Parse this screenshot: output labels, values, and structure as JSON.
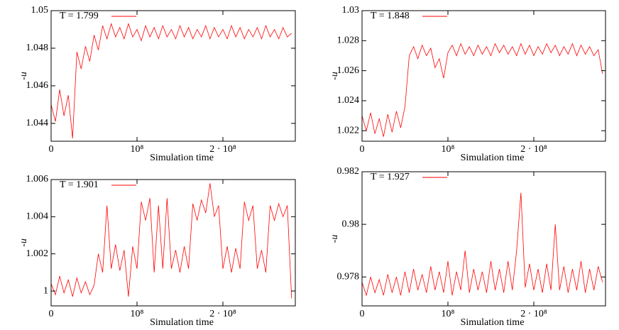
{
  "chart_data": [
    {
      "type": "line",
      "xlabel": "Simulation time",
      "ylabel": "-u",
      "legend": "upper left",
      "x": [
        0,
        5000000,
        10000000,
        15000000,
        20000000,
        25000000,
        30000000,
        35000000,
        40000000,
        45000000,
        50000000,
        55000000,
        60000000,
        65000000,
        70000000,
        75000000,
        80000000,
        85000000,
        90000000,
        95000000,
        100000000,
        105000000,
        110000000,
        115000000,
        120000000,
        125000000,
        130000000,
        135000000,
        140000000,
        145000000,
        150000000,
        155000000,
        160000000,
        165000000,
        170000000,
        175000000,
        180000000,
        185000000,
        190000000,
        195000000,
        200000000,
        205000000,
        210000000,
        215000000,
        220000000,
        225000000,
        230000000,
        235000000,
        240000000,
        245000000,
        250000000,
        255000000,
        260000000,
        265000000,
        270000000,
        275000000,
        280000000
      ],
      "series": [
        {
          "name": "T = 1.799",
          "color": "#ff0000",
          "values": [
            1.045,
            1.0441,
            1.0458,
            1.0444,
            1.0455,
            1.0432,
            1.0478,
            1.0469,
            1.0481,
            1.0473,
            1.0487,
            1.0479,
            1.0492,
            1.0485,
            1.0493,
            1.0486,
            1.0491,
            1.0485,
            1.0493,
            1.0486,
            1.049,
            1.0484,
            1.0492,
            1.0486,
            1.0491,
            1.0485,
            1.0492,
            1.0486,
            1.049,
            1.0485,
            1.0492,
            1.0486,
            1.0491,
            1.0485,
            1.049,
            1.0486,
            1.0492,
            1.0485,
            1.0491,
            1.0486,
            1.049,
            1.0485,
            1.0492,
            1.0486,
            1.0491,
            1.0485,
            1.049,
            1.0486,
            1.0491,
            1.0485,
            1.0492,
            1.0486,
            1.049,
            1.0485,
            1.0491,
            1.0486,
            1.0488
          ]
        }
      ],
      "xlim": [
        0,
        284300000
      ],
      "ylim": [
        1.04305,
        1.05
      ],
      "xticks": [
        0,
        {
          "value": 100000000,
          "label": "10⁸"
        },
        {
          "value": 200000000,
          "label": "2 · 10⁸"
        }
      ],
      "yticks": [
        1.044,
        1.046,
        1.048,
        1.05
      ]
    },
    {
      "type": "line",
      "xlabel": "Simulation time",
      "ylabel": "-u",
      "legend": "upper left",
      "x": [
        0,
        5000000,
        10000000,
        15000000,
        20000000,
        25000000,
        30000000,
        35000000,
        40000000,
        45000000,
        50000000,
        55000000,
        60000000,
        65000000,
        70000000,
        75000000,
        80000000,
        85000000,
        90000000,
        95000000,
        100000000,
        105000000,
        110000000,
        115000000,
        120000000,
        125000000,
        130000000,
        135000000,
        140000000,
        145000000,
        150000000,
        155000000,
        160000000,
        165000000,
        170000000,
        175000000,
        180000000,
        185000000,
        190000000,
        195000000,
        200000000,
        205000000,
        210000000,
        215000000,
        220000000,
        225000000,
        230000000,
        235000000,
        240000000,
        245000000,
        250000000,
        255000000,
        260000000,
        265000000,
        270000000,
        275000000,
        280000000
      ],
      "series": [
        {
          "name": "T = 1.848",
          "color": "#ff0000",
          "values": [
            1.023,
            1.022,
            1.0232,
            1.0218,
            1.0228,
            1.0216,
            1.0231,
            1.0219,
            1.0233,
            1.0222,
            1.0236,
            1.027,
            1.0276,
            1.0268,
            1.0277,
            1.027,
            1.0275,
            1.0262,
            1.0268,
            1.0255,
            1.0272,
            1.0277,
            1.027,
            1.0278,
            1.0271,
            1.0276,
            1.027,
            1.0277,
            1.0271,
            1.0276,
            1.027,
            1.0278,
            1.0272,
            1.0277,
            1.0271,
            1.0276,
            1.027,
            1.0278,
            1.0271,
            1.0277,
            1.027,
            1.0276,
            1.0271,
            1.0278,
            1.0272,
            1.0277,
            1.027,
            1.0276,
            1.0271,
            1.0278,
            1.027,
            1.0277,
            1.0271,
            1.0276,
            1.027,
            1.0274,
            1.0258
          ]
        }
      ],
      "xlim": [
        0,
        283500000
      ],
      "ylim": [
        1.0213,
        1.03
      ],
      "xticks": [
        0,
        {
          "value": 100000000,
          "label": "10⁸"
        },
        {
          "value": 200000000,
          "label": "2 · 10⁸"
        }
      ],
      "yticks": [
        1.022,
        1.024,
        1.026,
        1.028,
        1.03
      ]
    },
    {
      "type": "line",
      "xlabel": "Simulation time",
      "ylabel": "-u",
      "legend": "upper left",
      "x": [
        0,
        5000000,
        10000000,
        15000000,
        20000000,
        25000000,
        30000000,
        35000000,
        40000000,
        45000000,
        50000000,
        55000000,
        60000000,
        65000000,
        70000000,
        75000000,
        80000000,
        85000000,
        90000000,
        95000000,
        100000000,
        105000000,
        110000000,
        115000000,
        120000000,
        125000000,
        130000000,
        135000000,
        140000000,
        145000000,
        150000000,
        155000000,
        160000000,
        165000000,
        170000000,
        175000000,
        180000000,
        185000000,
        190000000,
        195000000,
        200000000,
        205000000,
        210000000,
        215000000,
        220000000,
        225000000,
        230000000,
        235000000,
        240000000,
        245000000,
        250000000,
        255000000,
        260000000,
        265000000,
        270000000,
        275000000,
        280000000
      ],
      "series": [
        {
          "name": "T = 1.901",
          "color": "#ff0000",
          "values": [
            1.0004,
            0.9998,
            1.0008,
            0.9999,
            1.0006,
            0.9997,
            1.0007,
            0.9999,
            1.0005,
            0.9998,
            1.0003,
            1.002,
            1.001,
            1.0046,
            1.0012,
            1.0025,
            1.0011,
            1.0022,
            0.9997,
            1.0024,
            1.0012,
            1.0048,
            1.0038,
            1.005,
            1.001,
            1.0046,
            1.0012,
            1.005,
            1.0012,
            1.0022,
            1.001,
            1.0024,
            1.0012,
            1.0047,
            1.0038,
            1.0049,
            1.0042,
            1.0058,
            1.004,
            1.0046,
            1.0012,
            1.0024,
            1.001,
            1.0023,
            1.0012,
            1.0048,
            1.0038,
            1.0046,
            1.0012,
            1.0022,
            1.001,
            1.0046,
            1.0038,
            1.0047,
            1.004,
            1.0046,
            0.9996
          ]
        }
      ],
      "xlim": [
        0,
        284300000
      ],
      "ylim": [
        0.9992,
        1.006
      ],
      "xticks": [
        0,
        {
          "value": 100000000,
          "label": "10⁸"
        },
        {
          "value": 200000000,
          "label": "2 · 10⁸"
        }
      ],
      "yticks": [
        1,
        1.002,
        1.004,
        1.006
      ]
    },
    {
      "type": "line",
      "xlabel": "Simulation time",
      "ylabel": "-u",
      "legend": "upper left",
      "x": [
        0,
        5000000,
        10000000,
        15000000,
        20000000,
        25000000,
        30000000,
        35000000,
        40000000,
        45000000,
        50000000,
        55000000,
        60000000,
        65000000,
        70000000,
        75000000,
        80000000,
        85000000,
        90000000,
        95000000,
        100000000,
        105000000,
        110000000,
        115000000,
        120000000,
        125000000,
        130000000,
        135000000,
        140000000,
        145000000,
        150000000,
        155000000,
        160000000,
        165000000,
        170000000,
        175000000,
        180000000,
        185000000,
        190000000,
        195000000,
        200000000,
        205000000,
        210000000,
        215000000,
        220000000,
        225000000,
        230000000,
        235000000,
        240000000,
        245000000,
        250000000,
        255000000,
        260000000,
        265000000,
        270000000,
        275000000,
        280000000
      ],
      "series": [
        {
          "name": "T = 1.927",
          "color": "#ff0000",
          "values": [
            0.9778,
            0.9773,
            0.978,
            0.9774,
            0.9779,
            0.9773,
            0.9781,
            0.9774,
            0.978,
            0.9773,
            0.9782,
            0.9774,
            0.9783,
            0.9775,
            0.9781,
            0.9774,
            0.9784,
            0.9775,
            0.9782,
            0.9774,
            0.9786,
            0.9773,
            0.9782,
            0.9775,
            0.979,
            0.9774,
            0.9783,
            0.9775,
            0.9782,
            0.9774,
            0.9786,
            0.9775,
            0.9783,
            0.9774,
            0.9786,
            0.9775,
            0.979,
            0.9812,
            0.9776,
            0.9785,
            0.9775,
            0.9783,
            0.9774,
            0.9785,
            0.9775,
            0.98,
            0.9775,
            0.9784,
            0.9774,
            0.9783,
            0.9775,
            0.9786,
            0.9774,
            0.9783,
            0.9775,
            0.9784,
            0.9778
          ]
        }
      ],
      "xlim": [
        0,
        283500000
      ],
      "ylim": [
        0.9769,
        0.982
      ],
      "xticks": [
        0,
        {
          "value": 100000000,
          "label": "10⁸"
        },
        {
          "value": 200000000,
          "label": "2 · 10⁸"
        }
      ],
      "yticks": [
        0.978,
        0.98,
        0.982
      ]
    }
  ]
}
